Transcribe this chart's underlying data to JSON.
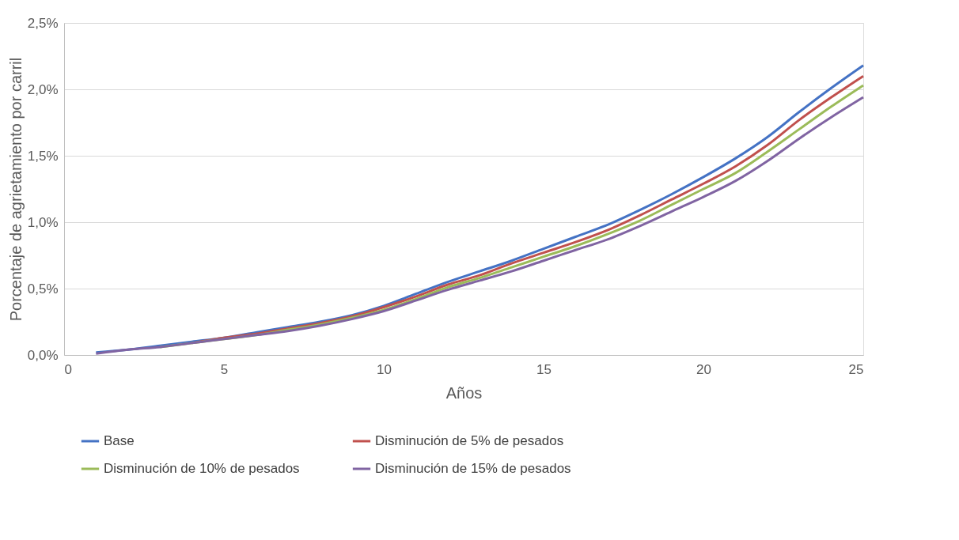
{
  "chart_data": {
    "type": "line",
    "xlabel": "Años",
    "ylabel": "Porcentaje de agrietamiento por carril",
    "x": [
      1,
      2,
      3,
      4,
      5,
      6,
      7,
      8,
      9,
      10,
      11,
      12,
      13,
      14,
      15,
      16,
      17,
      18,
      19,
      20,
      21,
      22,
      23,
      24,
      25
    ],
    "series": [
      {
        "name": "Base",
        "color": "#4472c4",
        "values": [
          0.02,
          0.04,
          0.07,
          0.1,
          0.13,
          0.17,
          0.21,
          0.25,
          0.3,
          0.37,
          0.46,
          0.55,
          0.63,
          0.71,
          0.8,
          0.89,
          0.98,
          1.09,
          1.21,
          1.34,
          1.48,
          1.64,
          1.83,
          2.01,
          2.18
        ]
      },
      {
        "name": "Disminución de 5% de pesados",
        "color": "#c0504d",
        "values": [
          null,
          null,
          null,
          0.09,
          0.13,
          0.16,
          0.2,
          0.24,
          0.29,
          0.36,
          0.44,
          0.53,
          0.6,
          0.69,
          0.77,
          0.85,
          0.94,
          1.05,
          1.17,
          1.29,
          1.42,
          1.58,
          1.77,
          1.94,
          2.1
        ]
      },
      {
        "name": "Disminución de 10% de pesados",
        "color": "#9bbb59",
        "values": [
          null,
          null,
          0.06,
          0.09,
          0.12,
          0.15,
          0.19,
          0.23,
          0.28,
          0.34,
          0.42,
          0.51,
          0.58,
          0.66,
          0.74,
          0.82,
          0.91,
          1.01,
          1.13,
          1.25,
          1.37,
          1.53,
          1.7,
          1.87,
          2.03
        ]
      },
      {
        "name": "Disminución de 15% de pesados",
        "color": "#8064a2",
        "values": [
          0.01,
          0.04,
          0.06,
          0.09,
          0.12,
          0.15,
          0.18,
          0.22,
          0.27,
          0.33,
          0.41,
          0.49,
          0.56,
          0.63,
          0.71,
          0.79,
          0.87,
          0.97,
          1.08,
          1.19,
          1.31,
          1.46,
          1.63,
          1.79,
          1.94
        ]
      }
    ],
    "xlim": [
      0,
      25
    ],
    "xticks": [
      0,
      5,
      10,
      15,
      20,
      25
    ],
    "ylim": [
      0,
      2.5
    ],
    "yticks": [
      {
        "value": 0,
        "label": "0,0%"
      },
      {
        "value": 0.5,
        "label": "0,5%"
      },
      {
        "value": 1,
        "label": "1,0%"
      },
      {
        "value": 1.5,
        "label": "1,5%"
      },
      {
        "value": 2,
        "label": "2,0%"
      },
      {
        "value": 2.5,
        "label": "2,5%"
      }
    ],
    "grid": "y",
    "legend": "bottom",
    "marker": "none",
    "line_style": "solid"
  }
}
